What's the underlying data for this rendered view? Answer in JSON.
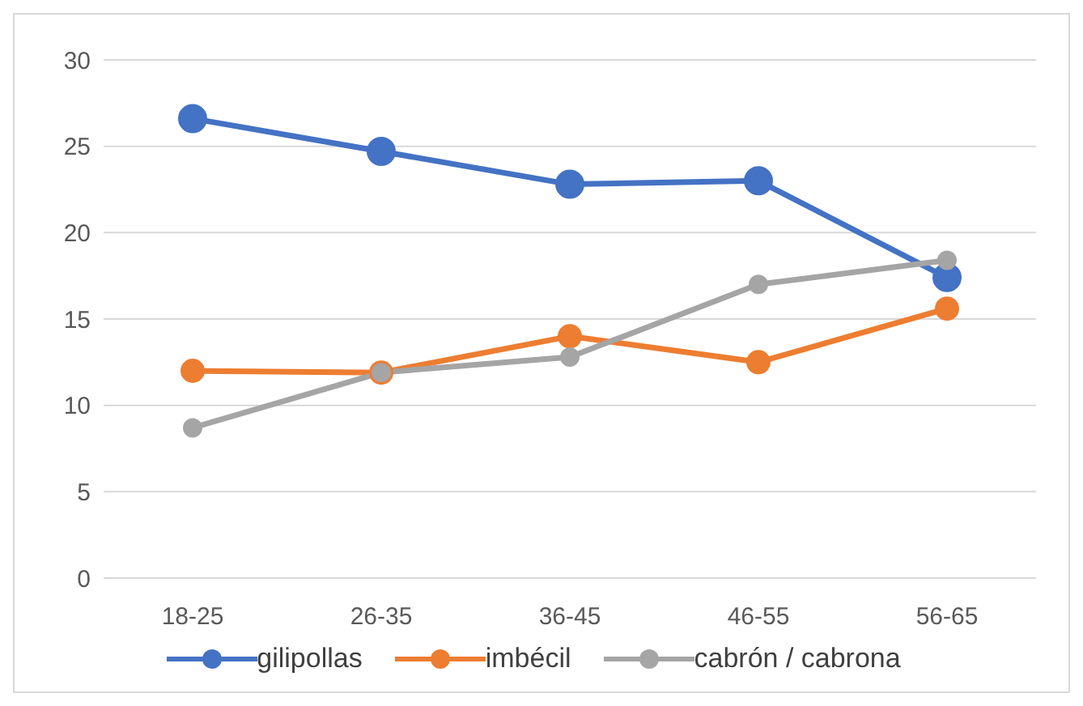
{
  "chart_data": {
    "type": "line",
    "categories": [
      "18-25",
      "26-35",
      "36-45",
      "46-55",
      "56-65"
    ],
    "series": [
      {
        "name": "gilipollas",
        "color": "#4472c4",
        "values": [
          26.6,
          24.7,
          22.8,
          23.0,
          17.4
        ]
      },
      {
        "name": "imbécil",
        "color": "#ed7d31",
        "values": [
          12.0,
          11.9,
          14.0,
          12.5,
          15.6
        ]
      },
      {
        "name": "cabrón / cabrona",
        "color": "#a5a5a5",
        "values": [
          8.7,
          11.9,
          12.8,
          17.0,
          18.4
        ]
      }
    ],
    "ylim": [
      0,
      30
    ],
    "yticks": [
      0,
      5,
      10,
      15,
      20,
      25,
      30
    ],
    "grid": "y",
    "legend": "bottom",
    "marker": "circle",
    "line_style": "solid"
  }
}
